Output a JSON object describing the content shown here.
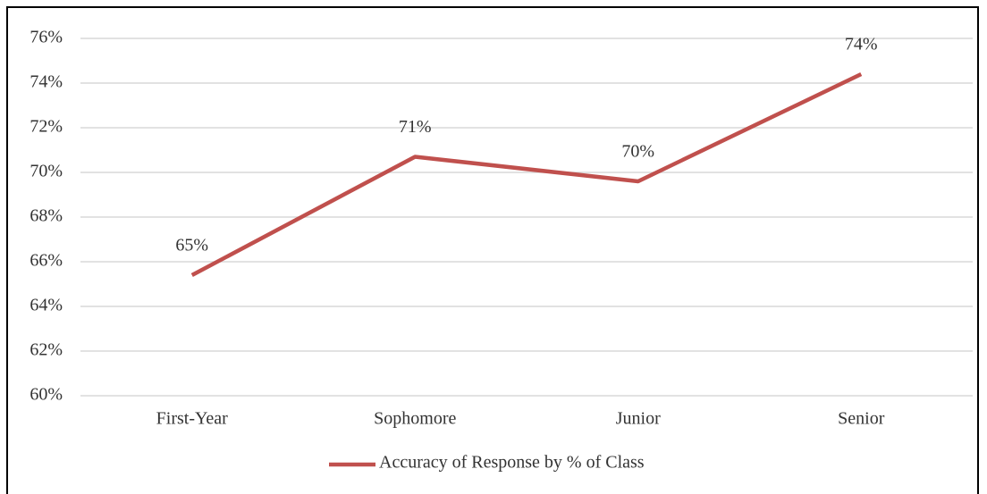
{
  "chart_data": {
    "type": "line",
    "categories": [
      "First-Year",
      "Sophomore",
      "Junior",
      "Senior"
    ],
    "series": [
      {
        "name": "Accuracy of Response by % of Class",
        "color": "#c0504d",
        "values": [
          65.4,
          70.7,
          69.6,
          74.4
        ],
        "value_labels": [
          "65%",
          "71%",
          "70%",
          "74%"
        ]
      }
    ],
    "ylim": [
      60,
      76
    ],
    "yticks": [
      {
        "value": 60,
        "label": "60%"
      },
      {
        "value": 62,
        "label": "62%"
      },
      {
        "value": 64,
        "label": "64%"
      },
      {
        "value": 66,
        "label": "66%"
      },
      {
        "value": 68,
        "label": "68%"
      },
      {
        "value": 70,
        "label": "70%"
      },
      {
        "value": 72,
        "label": "72%"
      },
      {
        "value": 74,
        "label": "74%"
      },
      {
        "value": 76,
        "label": "76%"
      }
    ],
    "grid": true,
    "legend": "bottom"
  }
}
